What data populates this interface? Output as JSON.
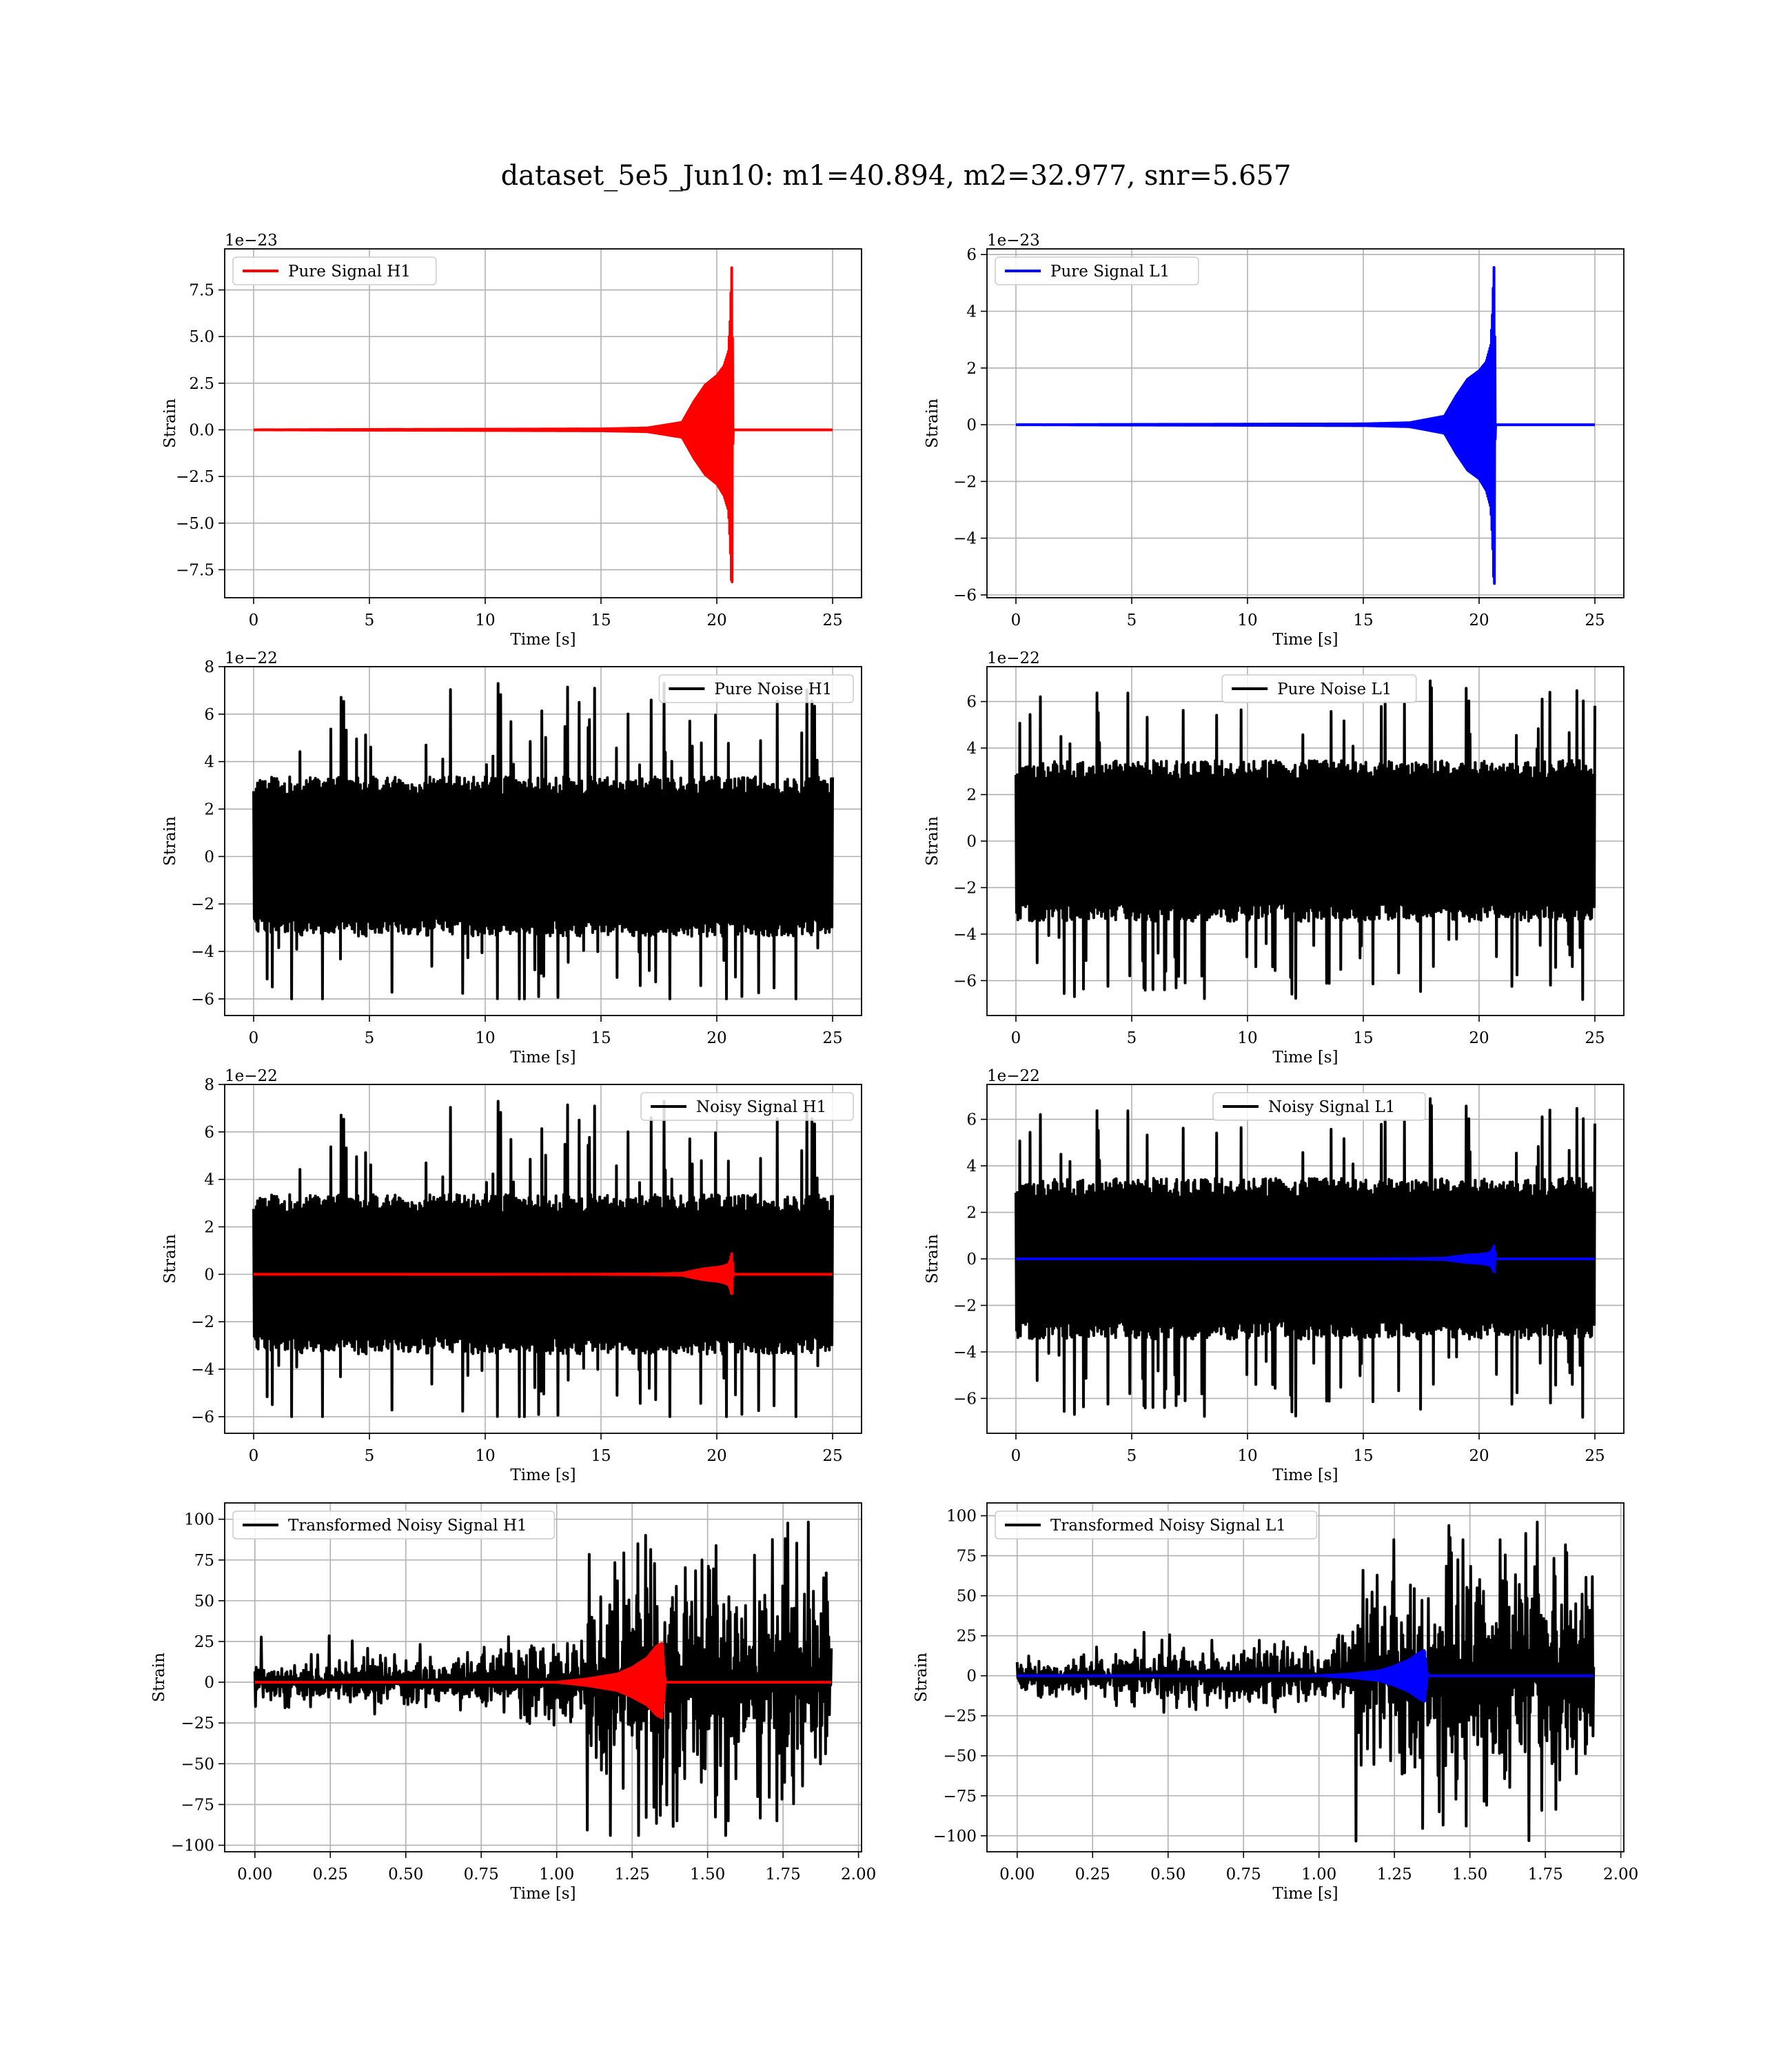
{
  "figure": {
    "title": "dataset_5e5_Jun10: m1=40.894, m2=32.977, snr=5.657"
  },
  "chart_data": [
    {
      "type": "line",
      "legend": "Pure Signal H1",
      "legend_position": "upper left",
      "xlabel": "Time [s]",
      "ylabel": "Strain",
      "offset_text": "1e−23",
      "xlim": [
        -1.25,
        26.25
      ],
      "ylim": [
        -9.0,
        9.7
      ],
      "xticks": [
        0,
        5,
        10,
        15,
        20,
        25
      ],
      "xtick_labels": [
        "0",
        "5",
        "10",
        "15",
        "20",
        "25"
      ],
      "yticks": [
        -7.5,
        -5.0,
        -2.5,
        0.0,
        2.5,
        5.0,
        7.5
      ],
      "ytick_labels": [
        "−7.5",
        "−5.0",
        "−2.5",
        "0.0",
        "2.5",
        "5.0",
        "7.5"
      ],
      "grid": true,
      "series": [
        {
          "color": "#ff0000",
          "x": [
            0,
            15,
            17,
            18.5,
            19,
            19.5,
            20,
            20.3,
            20.5,
            20.58,
            20.62,
            20.66,
            20.7,
            20.75,
            25
          ],
          "y_env_upper": [
            0,
            0.05,
            0.1,
            0.4,
            1.5,
            2.4,
            2.9,
            3.4,
            4.2,
            6.0,
            8.0,
            9.2,
            0,
            0,
            0
          ],
          "y_env_lower": [
            0,
            -0.05,
            -0.1,
            -0.4,
            -1.5,
            -2.4,
            -2.9,
            -3.5,
            -4.3,
            -6.2,
            -8.0,
            -8.3,
            0,
            0,
            0
          ]
        }
      ]
    },
    {
      "type": "line",
      "legend": "Pure Signal L1",
      "legend_position": "upper left",
      "xlabel": "Time [s]",
      "ylabel": "Strain",
      "offset_text": "1e−23",
      "xlim": [
        -1.25,
        26.25
      ],
      "ylim": [
        -6.1,
        6.2
      ],
      "xticks": [
        0,
        5,
        10,
        15,
        20,
        25
      ],
      "xtick_labels": [
        "0",
        "5",
        "10",
        "15",
        "20",
        "25"
      ],
      "yticks": [
        -6,
        -4,
        -2,
        0,
        2,
        4,
        6
      ],
      "ytick_labels": [
        "−6",
        "−4",
        "−2",
        "0",
        "2",
        "4",
        "6"
      ],
      "grid": true,
      "series": [
        {
          "color": "#0000ff",
          "x": [
            0,
            15,
            17,
            18.5,
            19,
            19.5,
            20,
            20.3,
            20.5,
            20.58,
            20.62,
            20.66,
            20.7,
            20.75,
            25
          ],
          "y_env_upper": [
            0,
            0.03,
            0.07,
            0.3,
            1.0,
            1.6,
            1.9,
            2.2,
            2.8,
            4.0,
            5.2,
            5.8,
            0,
            0,
            0
          ],
          "y_env_lower": [
            0,
            -0.03,
            -0.07,
            -0.3,
            -1.0,
            -1.6,
            -1.9,
            -2.3,
            -2.9,
            -4.1,
            -5.3,
            -5.7,
            0,
            0,
            0
          ]
        }
      ]
    },
    {
      "type": "line",
      "legend": "Pure Noise H1",
      "legend_position": "upper right",
      "xlabel": "Time [s]",
      "ylabel": "Strain",
      "offset_text": "1e−22",
      "xlim": [
        -1.25,
        26.25
      ],
      "ylim": [
        -6.7,
        8.0
      ],
      "xticks": [
        0,
        5,
        10,
        15,
        20,
        25
      ],
      "xtick_labels": [
        "0",
        "5",
        "10",
        "15",
        "20",
        "25"
      ],
      "yticks": [
        -6,
        -4,
        -2,
        0,
        2,
        4,
        6,
        8
      ],
      "ytick_labels": [
        "−6",
        "−4",
        "−2",
        "0",
        "2",
        "4",
        "6",
        "8"
      ],
      "grid": true,
      "noise": {
        "x_start": 0,
        "x_end": 25,
        "core": 3.2,
        "peak_max": 7.4,
        "peak_min": -6.0,
        "seed": 11
      },
      "series": []
    },
    {
      "type": "line",
      "legend": "Pure Noise L1",
      "legend_position": "upper center",
      "xlabel": "Time [s]",
      "ylabel": "Strain",
      "offset_text": "1e−22",
      "xlim": [
        -1.25,
        26.25
      ],
      "ylim": [
        -7.5,
        7.5
      ],
      "xticks": [
        0,
        5,
        10,
        15,
        20,
        25
      ],
      "xtick_labels": [
        "0",
        "5",
        "10",
        "15",
        "20",
        "25"
      ],
      "yticks": [
        -6,
        -4,
        -2,
        0,
        2,
        4,
        6
      ],
      "ytick_labels": [
        "−6",
        "−4",
        "−2",
        "0",
        "2",
        "4",
        "6"
      ],
      "grid": true,
      "noise": {
        "x_start": 0,
        "x_end": 25,
        "core": 3.3,
        "peak_max": 6.9,
        "peak_min": -6.9,
        "seed": 23
      },
      "series": []
    },
    {
      "type": "line",
      "legend": "Noisy Signal H1",
      "legend_position": "upper right",
      "xlabel": "Time [s]",
      "ylabel": "Strain",
      "offset_text": "1e−22",
      "xlim": [
        -1.25,
        26.25
      ],
      "ylim": [
        -6.7,
        8.0
      ],
      "xticks": [
        0,
        5,
        10,
        15,
        20,
        25
      ],
      "xtick_labels": [
        "0",
        "5",
        "10",
        "15",
        "20",
        "25"
      ],
      "yticks": [
        -6,
        -4,
        -2,
        0,
        2,
        4,
        6,
        8
      ],
      "ytick_labels": [
        "−6",
        "−4",
        "−2",
        "0",
        "2",
        "4",
        "6",
        "8"
      ],
      "grid": true,
      "noise": {
        "x_start": 0,
        "x_end": 25,
        "core": 3.2,
        "peak_max": 7.4,
        "peak_min": -6.0,
        "seed": 11
      },
      "series": [
        {
          "color": "#ff0000",
          "x": [
            0,
            15,
            17,
            18.5,
            19,
            19.5,
            20,
            20.3,
            20.5,
            20.58,
            20.62,
            20.66,
            20.7,
            20.75,
            25
          ],
          "y_env_upper": [
            0,
            0.005,
            0.01,
            0.04,
            0.15,
            0.24,
            0.29,
            0.34,
            0.42,
            0.6,
            0.8,
            0.92,
            0,
            0,
            0
          ],
          "y_env_lower": [
            0,
            -0.005,
            -0.01,
            -0.04,
            -0.15,
            -0.24,
            -0.29,
            -0.35,
            -0.43,
            -0.62,
            -0.8,
            -0.83,
            0,
            0,
            0
          ]
        }
      ]
    },
    {
      "type": "line",
      "legend": "Noisy Signal L1",
      "legend_position": "upper center",
      "xlabel": "Time [s]",
      "ylabel": "Strain",
      "offset_text": "1e−22",
      "xlim": [
        -1.25,
        26.25
      ],
      "ylim": [
        -7.5,
        7.5
      ],
      "xticks": [
        0,
        5,
        10,
        15,
        20,
        25
      ],
      "xtick_labels": [
        "0",
        "5",
        "10",
        "15",
        "20",
        "25"
      ],
      "yticks": [
        -6,
        -4,
        -2,
        0,
        2,
        4,
        6
      ],
      "ytick_labels": [
        "−6",
        "−4",
        "−2",
        "0",
        "2",
        "4",
        "6"
      ],
      "grid": true,
      "noise": {
        "x_start": 0,
        "x_end": 25,
        "core": 3.3,
        "peak_max": 6.9,
        "peak_min": -6.9,
        "seed": 23
      },
      "series": [
        {
          "color": "#0000ff",
          "x": [
            0,
            15,
            17,
            18.5,
            19,
            19.5,
            20,
            20.3,
            20.5,
            20.58,
            20.62,
            20.66,
            20.7,
            20.75,
            25
          ],
          "y_env_upper": [
            0,
            0.003,
            0.007,
            0.03,
            0.1,
            0.16,
            0.19,
            0.22,
            0.28,
            0.4,
            0.52,
            0.58,
            0,
            0,
            0
          ],
          "y_env_lower": [
            0,
            -0.003,
            -0.007,
            -0.03,
            -0.1,
            -0.16,
            -0.19,
            -0.23,
            -0.29,
            -0.41,
            -0.53,
            -0.57,
            0,
            0,
            0
          ]
        }
      ]
    },
    {
      "type": "line",
      "legend": "Transformed Noisy Signal H1",
      "legend_position": "upper left",
      "xlabel": "Time [s]",
      "ylabel": "Strain",
      "offset_text": "",
      "xlim": [
        -0.1,
        2.01
      ],
      "ylim": [
        -104,
        110
      ],
      "xticks": [
        0.0,
        0.25,
        0.5,
        0.75,
        1.0,
        1.25,
        1.5,
        1.75,
        2.0
      ],
      "xtick_labels": [
        "0.00",
        "0.25",
        "0.50",
        "0.75",
        "1.00",
        "1.25",
        "1.50",
        "1.75",
        "2.00"
      ],
      "yticks": [
        -100,
        -75,
        -50,
        -25,
        0,
        25,
        50,
        75,
        100
      ],
      "ytick_labels": [
        "−100",
        "−75",
        "−50",
        "−25",
        "0",
        "25",
        "50",
        "75",
        "100"
      ],
      "grid": true,
      "noise": {
        "x_start": 0,
        "x_end": 1.91,
        "transformed": true,
        "burst_start": 1.1,
        "burst_end": 1.88,
        "peak_max": 103,
        "peak_min": -94,
        "seed": 37
      },
      "series": [
        {
          "color": "#ff0000",
          "x": [
            0,
            1.0,
            1.1,
            1.2,
            1.25,
            1.3,
            1.33,
            1.35,
            1.36,
            1.91
          ],
          "y_env_upper": [
            0,
            0,
            2,
            5,
            9,
            15,
            22,
            24,
            0,
            0
          ],
          "y_env_lower": [
            0,
            0,
            -2,
            -5,
            -9,
            -14,
            -20,
            -22,
            0,
            0
          ]
        }
      ]
    },
    {
      "type": "line",
      "legend": "Transformed Noisy Signal L1",
      "legend_position": "upper left",
      "xlabel": "Time [s]",
      "ylabel": "Strain",
      "offset_text": "",
      "xlim": [
        -0.1,
        2.01
      ],
      "ylim": [
        -110,
        108
      ],
      "xticks": [
        0.0,
        0.25,
        0.5,
        0.75,
        1.0,
        1.25,
        1.5,
        1.75,
        2.0
      ],
      "xtick_labels": [
        "0.00",
        "0.25",
        "0.50",
        "0.75",
        "1.00",
        "1.25",
        "1.50",
        "1.75",
        "2.00"
      ],
      "yticks": [
        -100,
        -75,
        -50,
        -25,
        0,
        25,
        50,
        75,
        100
      ],
      "ytick_labels": [
        "−100",
        "−75",
        "−50",
        "−25",
        "0",
        "25",
        "50",
        "75",
        "100"
      ],
      "grid": true,
      "noise": {
        "x_start": 0,
        "x_end": 1.91,
        "transformed": true,
        "burst_start": 1.12,
        "burst_end": 1.88,
        "peak_max": 100,
        "peak_min": -104,
        "seed": 53
      },
      "series": [
        {
          "color": "#0000ff",
          "x": [
            0,
            1.0,
            1.1,
            1.2,
            1.25,
            1.3,
            1.33,
            1.35,
            1.36,
            1.91
          ],
          "y_env_upper": [
            0,
            0,
            1,
            3,
            6,
            10,
            14,
            16,
            0,
            0
          ],
          "y_env_lower": [
            0,
            0,
            -1,
            -3,
            -6,
            -10,
            -14,
            -16,
            0,
            0
          ]
        }
      ]
    }
  ]
}
